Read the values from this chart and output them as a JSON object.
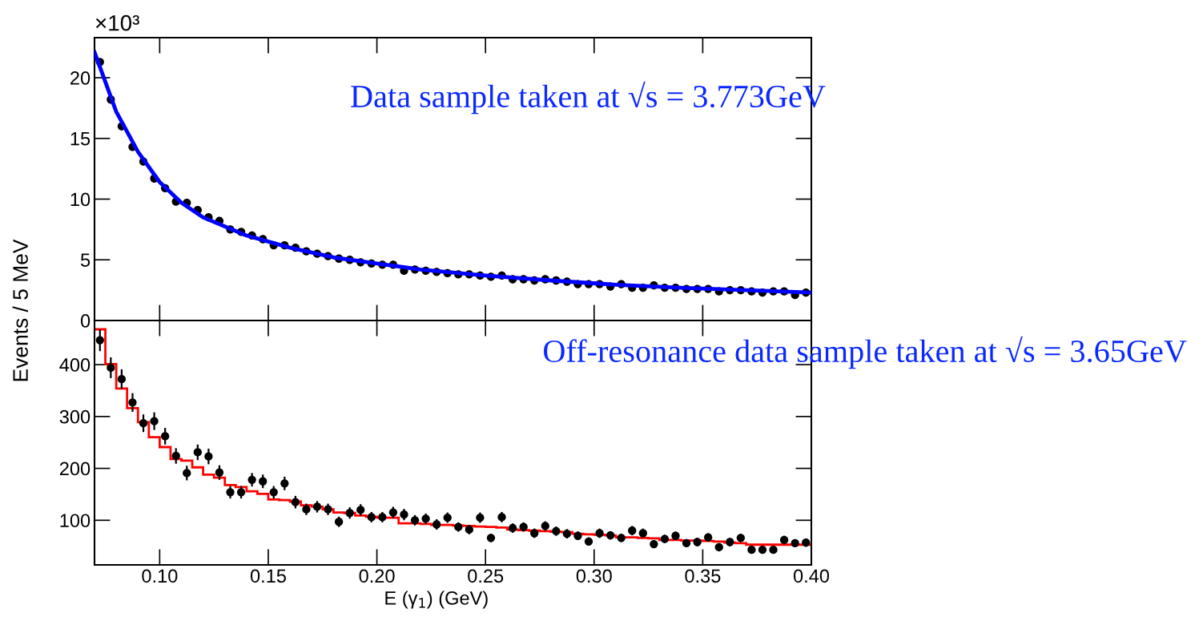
{
  "chart_data": [
    {
      "type": "scatter",
      "ylabel": "Events / 5 MeV",
      "annotations": [
        "×10³",
        "Data sample taken at √s = 3.773GeV"
      ],
      "xlim": [
        0.07,
        0.4
      ],
      "xticks": [
        0.1,
        0.15,
        0.2,
        0.25,
        0.3,
        0.35,
        0.4
      ],
      "ylim": [
        0,
        23.3
      ],
      "yticks": [
        0,
        5,
        10,
        15,
        20
      ],
      "tick_labels": "y",
      "legend": false,
      "grid": false,
      "series": [
        {
          "marker": "circle",
          "color": "#000000",
          "x": [
            0.0725,
            0.0775,
            0.0825,
            0.0875,
            0.0925,
            0.0975,
            0.1025,
            0.1075,
            0.1125,
            0.1175,
            0.1225,
            0.1275,
            0.1325,
            0.1375,
            0.1425,
            0.1475,
            0.1525,
            0.1575,
            0.1625,
            0.1675,
            0.1725,
            0.1775,
            0.1825,
            0.1875,
            0.1925,
            0.1975,
            0.2025,
            0.2075,
            0.2125,
            0.2175,
            0.2225,
            0.2275,
            0.2325,
            0.2375,
            0.2425,
            0.2475,
            0.2525,
            0.2575,
            0.2625,
            0.2675,
            0.2725,
            0.2775,
            0.2825,
            0.2875,
            0.2925,
            0.2975,
            0.3025,
            0.3075,
            0.3125,
            0.3175,
            0.3225,
            0.3275,
            0.3325,
            0.3375,
            0.3425,
            0.3475,
            0.3525,
            0.3575,
            0.3625,
            0.3675,
            0.3725,
            0.3775,
            0.3825,
            0.3875,
            0.3925,
            0.3975
          ],
          "values": [
            21.3,
            18.2,
            16.0,
            14.3,
            13.1,
            11.7,
            10.9,
            9.8,
            9.7,
            9.1,
            8.5,
            8.2,
            7.5,
            7.3,
            7.0,
            6.7,
            6.2,
            6.2,
            6.0,
            5.7,
            5.5,
            5.3,
            5.1,
            5.0,
            4.8,
            4.7,
            4.6,
            4.6,
            4.1,
            4.2,
            4.1,
            4.0,
            3.9,
            3.8,
            3.8,
            3.7,
            3.6,
            3.7,
            3.4,
            3.4,
            3.3,
            3.4,
            3.3,
            3.2,
            3.0,
            3.0,
            3.0,
            2.8,
            3.0,
            2.7,
            2.7,
            2.9,
            2.7,
            2.7,
            2.6,
            2.6,
            2.6,
            2.4,
            2.5,
            2.5,
            2.4,
            2.3,
            2.4,
            2.4,
            2.1,
            2.3
          ]
        },
        {
          "type": "line",
          "color": "#0000ff",
          "x": [
            0.07,
            0.08,
            0.09,
            0.1,
            0.11,
            0.12,
            0.14,
            0.16,
            0.18,
            0.2,
            0.22,
            0.25,
            0.28,
            0.31,
            0.34,
            0.37,
            0.4
          ],
          "values": [
            22.1,
            17.2,
            13.9,
            11.4,
            9.7,
            8.5,
            7.0,
            6.0,
            5.2,
            4.7,
            4.2,
            3.7,
            3.3,
            2.95,
            2.7,
            2.5,
            2.3
          ]
        }
      ]
    },
    {
      "type": "scatter",
      "xlabel": "E (γ$_{1}$) (GeV)",
      "annotations": [
        "Off-resonance data sample taken at √s = 3.65GeV"
      ],
      "xlim": [
        0.07,
        0.4
      ],
      "xticks": [
        {
          "value": 0.1,
          "label": "0.10"
        },
        0.15,
        {
          "value": 0.2,
          "label": "0.20"
        },
        0.25,
        {
          "value": 0.3,
          "label": "0.30"
        },
        0.35,
        {
          "value": 0.4,
          "label": "0.40"
        }
      ],
      "ylim": [
        14,
        485
      ],
      "yticks": [
        100,
        200,
        300,
        400
      ],
      "legend": false,
      "grid": false,
      "series": [
        {
          "marker": "circle",
          "color": "#000000",
          "x": [
            0.0725,
            0.0775,
            0.0825,
            0.0875,
            0.0925,
            0.0975,
            0.1025,
            0.1075,
            0.1125,
            0.1175,
            0.1225,
            0.1275,
            0.1325,
            0.1375,
            0.1425,
            0.1475,
            0.1525,
            0.1575,
            0.1625,
            0.1675,
            0.1725,
            0.1775,
            0.1825,
            0.1875,
            0.1925,
            0.1975,
            0.2025,
            0.2075,
            0.2125,
            0.2175,
            0.2225,
            0.2275,
            0.2325,
            0.2375,
            0.2425,
            0.2475,
            0.2525,
            0.2575,
            0.2625,
            0.2675,
            0.2725,
            0.2775,
            0.2825,
            0.2875,
            0.2925,
            0.2975,
            0.3025,
            0.3075,
            0.3125,
            0.3175,
            0.3225,
            0.3275,
            0.3325,
            0.3375,
            0.3425,
            0.3475,
            0.3525,
            0.3575,
            0.3625,
            0.3675,
            0.3725,
            0.3775,
            0.3825,
            0.3875,
            0.3925,
            0.3975
          ],
          "values": [
            447,
            394,
            372,
            327,
            287,
            291,
            262,
            224,
            191,
            231,
            223,
            192,
            154,
            154,
            178,
            175,
            154,
            171,
            135,
            121,
            126,
            121,
            97,
            114,
            120,
            106,
            106,
            115,
            111,
            100,
            103,
            92,
            105,
            87,
            82,
            105,
            66,
            106,
            85,
            87,
            75,
            89,
            79,
            74,
            70,
            59,
            75,
            71,
            66,
            80,
            75,
            54,
            64,
            70,
            56,
            58,
            67,
            48,
            58,
            66,
            43,
            43,
            43,
            62,
            56,
            57
          ],
          "errors": [
            21,
            20,
            19,
            18,
            17,
            17,
            16,
            15,
            14,
            15,
            15,
            14,
            12,
            12,
            13,
            13,
            12,
            13,
            12,
            11,
            11,
            11,
            10,
            11,
            11,
            10,
            10,
            11,
            11,
            10,
            10,
            10,
            10,
            9,
            9,
            10,
            8,
            10,
            9,
            9,
            9,
            9,
            9,
            9,
            8,
            8,
            9,
            8,
            8,
            9,
            9,
            7,
            8,
            8,
            7,
            8,
            8,
            7,
            8,
            8,
            7,
            7,
            7,
            8,
            7,
            8
          ]
        },
        {
          "type": "histogram",
          "color": "#ff0000",
          "bins": [
            0.07,
            0.075,
            0.08,
            0.085,
            0.09,
            0.095,
            0.1,
            0.105,
            0.11,
            0.115,
            0.12,
            0.125,
            0.13,
            0.135,
            0.14,
            0.145,
            0.15,
            0.155,
            0.16,
            0.165,
            0.17,
            0.175,
            0.18,
            0.185,
            0.19,
            0.195,
            0.2,
            0.205,
            0.21,
            0.215,
            0.22,
            0.225,
            0.23,
            0.235,
            0.24,
            0.245,
            0.25,
            0.255,
            0.26,
            0.265,
            0.27,
            0.275,
            0.28,
            0.285,
            0.29,
            0.295,
            0.3,
            0.305,
            0.31,
            0.315,
            0.32,
            0.325,
            0.33,
            0.335,
            0.34,
            0.345,
            0.35,
            0.355,
            0.36,
            0.365,
            0.37,
            0.375,
            0.38,
            0.385,
            0.39,
            0.395,
            0.4
          ],
          "values": [
            468,
            401,
            354,
            316,
            289,
            260,
            241,
            218,
            215,
            202,
            188,
            182,
            168,
            164,
            156,
            151,
            140,
            139,
            136,
            129,
            126,
            121,
            115,
            114,
            109,
            107,
            105,
            105,
            94,
            94,
            93,
            91,
            91,
            90,
            89,
            88,
            87,
            86,
            82,
            81,
            80,
            79,
            78,
            77,
            74,
            73,
            72,
            71,
            67,
            67,
            66,
            65,
            62,
            62,
            61,
            61,
            60,
            59,
            57,
            56,
            53,
            53,
            53,
            53,
            53,
            53
          ]
        }
      ]
    }
  ]
}
